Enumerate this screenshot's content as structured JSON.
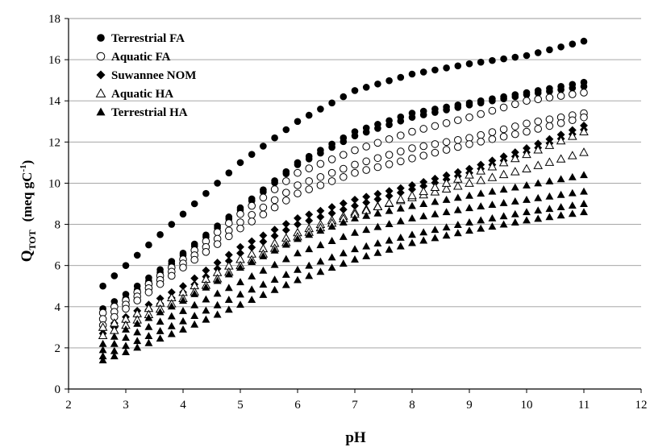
{
  "chart_data": {
    "type": "scatter",
    "xlabel": "pH",
    "ylabel": {
      "main": "Q",
      "sub": "TOT",
      "unit_open": "(meq gC",
      "unit_sup": "-1",
      "unit_close": ")"
    },
    "xlim": [
      2,
      12
    ],
    "ylim": [
      0,
      18
    ],
    "xticks": [
      "2",
      "3",
      "4",
      "5",
      "6",
      "7",
      "8",
      "9",
      "10",
      "11",
      "12"
    ],
    "yticks": [
      "0",
      "2",
      "4",
      "6",
      "8",
      "10",
      "12",
      "14",
      "16",
      "18"
    ],
    "grid": "horizontal",
    "legend_position": "top-left",
    "x_range": [
      2.6,
      11.0
    ],
    "x_step": 0.2,
    "series": [
      {
        "name": "Terrestrial FA",
        "marker": "circle-filled",
        "curves": [
          {
            "anchors": [
              [
                2.6,
                5.0
              ],
              [
                3.0,
                6.0
              ],
              [
                4.0,
                8.5
              ],
              [
                5.0,
                11.0
              ],
              [
                6.0,
                13.0
              ],
              [
                7.0,
                14.5
              ],
              [
                8.0,
                15.3
              ],
              [
                9.0,
                15.8
              ],
              [
                10.0,
                16.2
              ],
              [
                11.0,
                16.9
              ]
            ]
          },
          {
            "anchors": [
              [
                2.6,
                3.9
              ],
              [
                3.0,
                4.6
              ],
              [
                4.0,
                6.6
              ],
              [
                5.0,
                8.8
              ],
              [
                6.0,
                11.0
              ],
              [
                7.0,
                12.5
              ],
              [
                8.0,
                13.4
              ],
              [
                9.0,
                13.9
              ],
              [
                10.0,
                14.4
              ],
              [
                11.0,
                14.9
              ]
            ]
          },
          {
            "anchors": [
              [
                2.6,
                3.7
              ],
              [
                3.0,
                4.4
              ],
              [
                4.0,
                6.5
              ],
              [
                5.0,
                8.7
              ],
              [
                6.0,
                10.9
              ],
              [
                7.0,
                12.3
              ],
              [
                8.0,
                13.2
              ],
              [
                9.0,
                13.8
              ],
              [
                10.0,
                14.3
              ],
              [
                11.0,
                14.7
              ]
            ]
          }
        ]
      },
      {
        "name": "Aquatic FA",
        "marker": "circle-open",
        "curves": [
          {
            "anchors": [
              [
                2.6,
                3.7
              ],
              [
                3.0,
                4.3
              ],
              [
                4.0,
                6.3
              ],
              [
                5.0,
                8.5
              ],
              [
                6.0,
                10.5
              ],
              [
                7.0,
                11.6
              ],
              [
                8.0,
                12.5
              ],
              [
                9.0,
                13.2
              ],
              [
                10.0,
                14.0
              ],
              [
                11.0,
                14.4
              ]
            ]
          },
          {
            "anchors": [
              [
                2.6,
                3.4
              ],
              [
                3.0,
                4.1
              ],
              [
                4.0,
                6.1
              ],
              [
                5.0,
                8.1
              ],
              [
                6.0,
                9.9
              ],
              [
                7.0,
                10.9
              ],
              [
                8.0,
                11.7
              ],
              [
                9.0,
                12.2
              ],
              [
                10.0,
                12.9
              ],
              [
                11.0,
                13.4
              ]
            ]
          },
          {
            "anchors": [
              [
                2.6,
                3.1
              ],
              [
                3.0,
                3.9
              ],
              [
                4.0,
                5.9
              ],
              [
                5.0,
                7.8
              ],
              [
                6.0,
                9.5
              ],
              [
                7.0,
                10.5
              ],
              [
                8.0,
                11.2
              ],
              [
                9.0,
                11.9
              ],
              [
                10.0,
                12.5
              ],
              [
                11.0,
                13.2
              ]
            ]
          }
        ]
      },
      {
        "name": "Suwannee NOM",
        "marker": "diamond-filled",
        "curves": [
          {
            "anchors": [
              [
                2.6,
                2.9
              ],
              [
                3.0,
                3.5
              ],
              [
                4.0,
                5.0
              ],
              [
                5.0,
                6.9
              ],
              [
                6.0,
                8.3
              ],
              [
                7.0,
                9.2
              ],
              [
                8.0,
                9.9
              ],
              [
                9.0,
                10.7
              ],
              [
                10.0,
                11.7
              ],
              [
                11.0,
                12.8
              ]
            ]
          },
          {
            "anchors": [
              [
                2.6,
                2.7
              ],
              [
                3.0,
                3.3
              ],
              [
                4.0,
                4.7
              ],
              [
                5.0,
                6.6
              ],
              [
                6.0,
                8.0
              ],
              [
                7.0,
                8.9
              ],
              [
                8.0,
                9.7
              ],
              [
                9.0,
                10.5
              ],
              [
                10.0,
                11.5
              ],
              [
                11.0,
                12.6
              ]
            ]
          }
        ]
      },
      {
        "name": "Aquatic HA",
        "marker": "triangle-open",
        "curves": [
          {
            "anchors": [
              [
                2.6,
                3.0
              ],
              [
                3.0,
                3.4
              ],
              [
                4.0,
                4.7
              ],
              [
                5.0,
                6.3
              ],
              [
                6.0,
                7.6
              ],
              [
                7.0,
                8.6
              ],
              [
                8.0,
                9.3
              ],
              [
                9.0,
                10.0
              ],
              [
                10.0,
                10.7
              ],
              [
                11.0,
                11.5
              ]
            ]
          },
          {
            "anchors": [
              [
                2.6,
                2.6
              ],
              [
                3.0,
                3.1
              ],
              [
                4.0,
                4.4
              ],
              [
                5.0,
                6.0
              ],
              [
                6.0,
                7.4
              ],
              [
                7.0,
                8.5
              ],
              [
                8.0,
                9.4
              ],
              [
                9.0,
                10.4
              ],
              [
                10.0,
                11.4
              ],
              [
                11.0,
                12.5
              ]
            ]
          }
        ]
      },
      {
        "name": "Terrestrial HA",
        "marker": "triangle-filled",
        "curves": [
          {
            "anchors": [
              [
                2.6,
                2.2
              ],
              [
                3.0,
                2.9
              ],
              [
                4.0,
                4.3
              ],
              [
                5.0,
                5.9
              ],
              [
                6.0,
                7.3
              ],
              [
                7.0,
                8.3
              ],
              [
                8.0,
                8.9
              ],
              [
                9.0,
                9.4
              ],
              [
                10.0,
                9.9
              ],
              [
                11.0,
                10.4
              ]
            ]
          },
          {
            "anchors": [
              [
                2.6,
                1.9
              ],
              [
                3.0,
                2.5
              ],
              [
                4.0,
                3.8
              ],
              [
                5.0,
                5.2
              ],
              [
                6.0,
                6.6
              ],
              [
                7.0,
                7.6
              ],
              [
                8.0,
                8.3
              ],
              [
                9.0,
                8.8
              ],
              [
                10.0,
                9.2
              ],
              [
                11.0,
                9.6
              ]
            ]
          },
          {
            "anchors": [
              [
                2.6,
                1.6
              ],
              [
                3.0,
                2.1
              ],
              [
                4.0,
                3.3
              ],
              [
                5.0,
                4.6
              ],
              [
                6.0,
                5.8
              ],
              [
                7.0,
                6.8
              ],
              [
                8.0,
                7.5
              ],
              [
                9.0,
                8.1
              ],
              [
                10.0,
                8.6
              ],
              [
                11.0,
                9.0
              ]
            ]
          },
          {
            "anchors": [
              [
                2.6,
                1.4
              ],
              [
                3.0,
                1.8
              ],
              [
                4.0,
                2.9
              ],
              [
                5.0,
                4.1
              ],
              [
                6.0,
                5.3
              ],
              [
                7.0,
                6.3
              ],
              [
                8.0,
                7.1
              ],
              [
                9.0,
                7.7
              ],
              [
                10.0,
                8.2
              ],
              [
                11.0,
                8.6
              ]
            ]
          }
        ]
      }
    ]
  }
}
